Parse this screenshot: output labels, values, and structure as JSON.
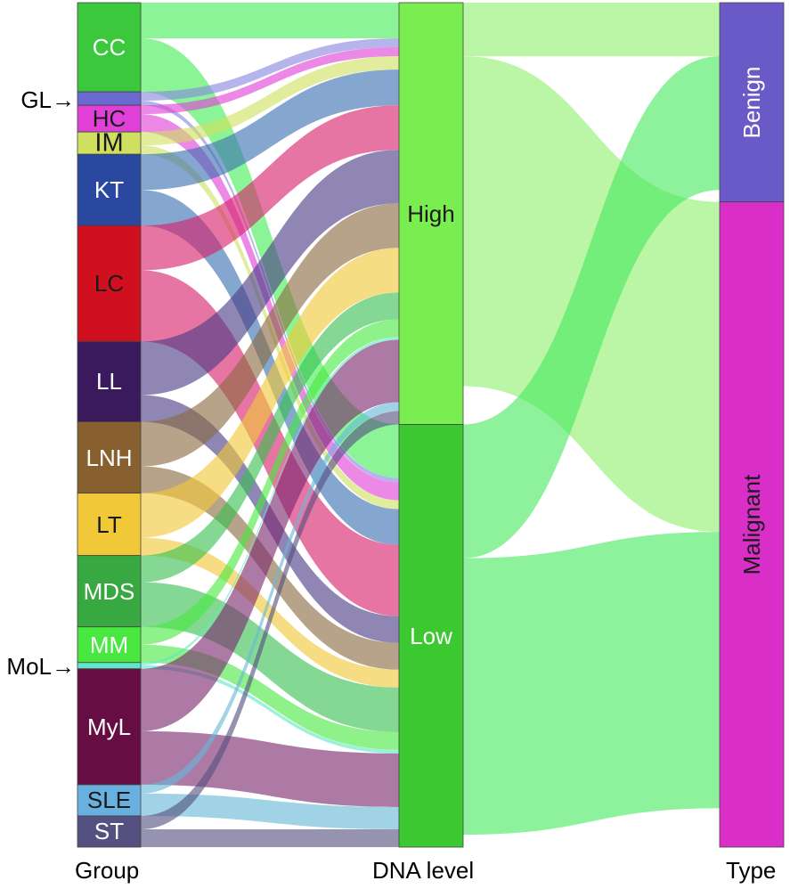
{
  "columns": [
    "Group",
    "DNA level",
    "Type"
  ],
  "groups": [
    {
      "id": "CC",
      "label": "CC",
      "color": "#3cc83c",
      "label_dark": false
    },
    {
      "id": "GL",
      "label": "GL",
      "color": "#6a6ad0",
      "label_dark": false
    },
    {
      "id": "HC",
      "label": "HC",
      "color": "#e040d8",
      "label_dark": true
    },
    {
      "id": "IM",
      "label": "IM",
      "color": "#cfe060",
      "label_dark": true
    },
    {
      "id": "KT",
      "label": "KT",
      "color": "#2a48a0",
      "label_dark": false
    },
    {
      "id": "LC",
      "label": "LC",
      "color": "#d0101e",
      "label_dark": true
    },
    {
      "id": "LL",
      "label": "LL",
      "color": "#3a1a5c",
      "label_dark": false
    },
    {
      "id": "LNH",
      "label": "LNH",
      "color": "#886030",
      "label_dark": false
    },
    {
      "id": "LT",
      "label": "LT",
      "color": "#f0c838",
      "label_dark": true
    },
    {
      "id": "MDS",
      "label": "MDS",
      "color": "#38a840",
      "label_dark": false
    },
    {
      "id": "MM",
      "label": "MM",
      "color": "#48e840",
      "label_dark": false
    },
    {
      "id": "MoL",
      "label": "MoL",
      "color": "#60e8c8",
      "label_dark": false
    },
    {
      "id": "MyL",
      "label": "MyL",
      "color": "#660e44",
      "label_dark": false
    },
    {
      "id": "SLE",
      "label": "SLE",
      "color": "#68b0e0",
      "label_dark": true
    },
    {
      "id": "ST",
      "label": "ST",
      "color": "#545080",
      "label_dark": false
    }
  ],
  "dna_levels": [
    {
      "id": "High",
      "label": "High",
      "color": "#7aee50",
      "label_dark": true
    },
    {
      "id": "Low",
      "label": "Low",
      "color": "#3cc830",
      "label_dark": false
    }
  ],
  "types": [
    {
      "id": "Benign",
      "label": "Benign",
      "color": "#6a5ac8",
      "label_dark": false
    },
    {
      "id": "Malignant",
      "label": "Malignant",
      "color": "#da2ec8",
      "label_dark": true
    }
  ],
  "arrow_labels": [
    {
      "group": "GL",
      "text": "GL→"
    },
    {
      "group": "MoL",
      "text": "MoL→"
    }
  ],
  "flows_group_dna": [
    {
      "source": "CC",
      "target": "High",
      "value": 4,
      "color": "#44ee55"
    },
    {
      "source": "CC",
      "target": "Low",
      "value": 6,
      "color": "#44ee55"
    },
    {
      "source": "GL",
      "target": "High",
      "value": 1,
      "color": "#8888e0"
    },
    {
      "source": "GL",
      "target": "Low",
      "value": 0.5,
      "color": "#8888e0"
    },
    {
      "source": "HC",
      "target": "High",
      "value": 1,
      "color": "#e040d8"
    },
    {
      "source": "HC",
      "target": "Low",
      "value": 2,
      "color": "#e040d8"
    },
    {
      "source": "IM",
      "target": "High",
      "value": 1.5,
      "color": "#cfe060"
    },
    {
      "source": "IM",
      "target": "Low",
      "value": 1,
      "color": "#cfe060"
    },
    {
      "source": "KT",
      "target": "High",
      "value": 4,
      "color": "#3a70b0"
    },
    {
      "source": "KT",
      "target": "Low",
      "value": 4,
      "color": "#3a70b0"
    },
    {
      "source": "LC",
      "target": "High",
      "value": 5,
      "color": "#d8206c"
    },
    {
      "source": "LC",
      "target": "Low",
      "value": 8,
      "color": "#d8206c"
    },
    {
      "source": "LL",
      "target": "High",
      "value": 6,
      "color": "#4a3c86"
    },
    {
      "source": "LL",
      "target": "Low",
      "value": 3,
      "color": "#4a3c86"
    },
    {
      "source": "LNH",
      "target": "High",
      "value": 5,
      "color": "#8a6a40"
    },
    {
      "source": "LNH",
      "target": "Low",
      "value": 3,
      "color": "#8a6a40"
    },
    {
      "source": "LT",
      "target": "High",
      "value": 5,
      "color": "#f0c838"
    },
    {
      "source": "LT",
      "target": "Low",
      "value": 2,
      "color": "#f0c838"
    },
    {
      "source": "MDS",
      "target": "High",
      "value": 3,
      "color": "#38c050"
    },
    {
      "source": "MDS",
      "target": "Low",
      "value": 5,
      "color": "#38c050"
    },
    {
      "source": "MM",
      "target": "High",
      "value": 2,
      "color": "#48e840"
    },
    {
      "source": "MM",
      "target": "Low",
      "value": 2,
      "color": "#48e840"
    },
    {
      "source": "MoL",
      "target": "High",
      "value": 0.3,
      "color": "#60e8c8"
    },
    {
      "source": "MoL",
      "target": "Low",
      "value": 0.4,
      "color": "#60e8c8"
    },
    {
      "source": "MyL",
      "target": "High",
      "value": 7,
      "color": "#7a2870"
    },
    {
      "source": "MyL",
      "target": "Low",
      "value": 6,
      "color": "#7a2870"
    },
    {
      "source": "SLE",
      "target": "High",
      "value": 1,
      "color": "#68b8d8"
    },
    {
      "source": "SLE",
      "target": "Low",
      "value": 2.5,
      "color": "#68b8d8"
    },
    {
      "source": "ST",
      "target": "High",
      "value": 1.5,
      "color": "#545080"
    },
    {
      "source": "ST",
      "target": "Low",
      "value": 2,
      "color": "#545080"
    }
  ],
  "flows_dna_type": [
    {
      "source": "High",
      "target": "Benign",
      "value": 6,
      "color": "#90f070"
    },
    {
      "source": "High",
      "target": "Malignant",
      "value": 37,
      "color": "#90f070"
    },
    {
      "source": "Low",
      "target": "Benign",
      "value": 15,
      "color": "#48e860"
    },
    {
      "source": "Low",
      "target": "Malignant",
      "value": 31,
      "color": "#48e860"
    }
  ]
}
